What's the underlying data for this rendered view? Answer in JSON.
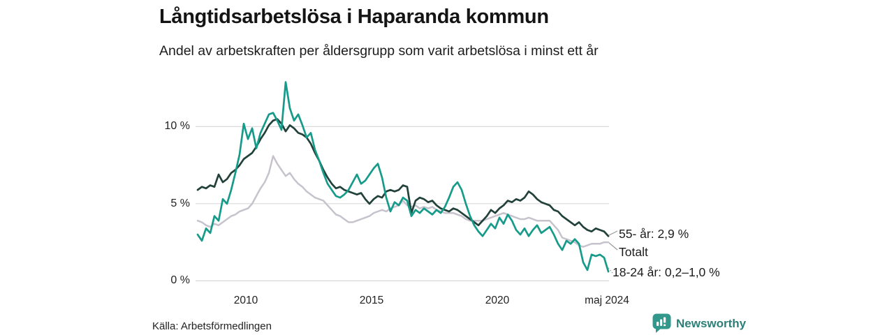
{
  "header": {
    "title": "Långtidsarbetslösa i Haparanda kommun",
    "subtitle": "Andel av arbetskraften per åldersgrupp som varit arbetslösa i minst ett år"
  },
  "chart_data": {
    "type": "line",
    "title": "Långtidsarbetslösa i Haparanda kommun",
    "subtitle": "Andel av arbetskraften per åldersgrupp som varit arbetslösa i minst ett år",
    "unit": "%",
    "grid": "horizontal",
    "legend_position": "line-end-labels-right",
    "xlim": [
      2008.0,
      2024.5
    ],
    "ylim": [
      0,
      13.5
    ],
    "x_start": 2008.083,
    "x_step": 0.16667,
    "x_ticks": [
      {
        "value": 2010,
        "label": "2010"
      },
      {
        "value": 2015,
        "label": "2015"
      },
      {
        "value": 2020,
        "label": "2020"
      },
      {
        "value": 2024.417,
        "label": "maj 2024"
      }
    ],
    "y_ticks": [
      {
        "value": 0,
        "label": "0 %"
      },
      {
        "value": 5,
        "label": "5 %"
      },
      {
        "value": 10,
        "label": "10 %"
      }
    ],
    "series": [
      {
        "name": "Totalt",
        "label": "Totalt",
        "color": "#c7c3cd",
        "values": [
          3.9,
          3.8,
          3.6,
          3.5,
          3.7,
          3.6,
          3.8,
          4.0,
          4.2,
          4.3,
          4.5,
          4.6,
          4.7,
          5.0,
          5.5,
          6.0,
          6.4,
          7.0,
          8.1,
          7.6,
          7.2,
          6.8,
          7.0,
          6.6,
          6.3,
          6.1,
          5.8,
          5.6,
          5.4,
          5.3,
          5.2,
          4.9,
          4.6,
          4.3,
          4.2,
          4.0,
          3.8,
          3.8,
          3.9,
          4.0,
          4.1,
          4.2,
          4.4,
          4.5,
          4.6,
          4.5,
          4.7,
          4.8,
          4.9,
          5.2,
          4.9,
          4.8,
          4.9,
          4.7,
          4.8,
          4.7,
          4.8,
          4.6,
          4.5,
          4.4,
          4.4,
          4.4,
          4.3,
          4.2,
          4.0,
          3.9,
          3.9,
          3.9,
          3.9,
          4.0,
          4.1,
          4.2,
          4.3,
          4.4,
          4.3,
          4.2,
          4.1,
          4.0,
          4.0,
          4.1,
          4.0,
          3.9,
          3.9,
          3.9,
          3.9,
          3.6,
          3.3,
          2.8,
          2.7,
          2.6,
          2.5,
          2.3,
          2.2,
          2.3,
          2.4,
          2.4,
          2.4,
          2.5,
          2.5
        ]
      },
      {
        "name": "55- år",
        "label": "55- år: 2,9 %",
        "last_value": "2,9 %",
        "color": "#22413a",
        "values": [
          5.9,
          6.1,
          6.0,
          6.2,
          6.1,
          6.9,
          6.4,
          6.6,
          7.0,
          7.2,
          7.5,
          7.9,
          8.1,
          8.3,
          8.7,
          9.2,
          9.6,
          10.1,
          10.4,
          10.5,
          10.2,
          9.7,
          10.1,
          9.9,
          9.6,
          9.5,
          9.3,
          8.9,
          8.3,
          7.8,
          7.2,
          6.7,
          6.3,
          6.0,
          6.1,
          5.9,
          5.8,
          5.7,
          5.6,
          5.7,
          5.3,
          5.0,
          5.3,
          5.5,
          5.4,
          5.8,
          5.9,
          5.8,
          5.9,
          6.2,
          6.1,
          4.4,
          5.2,
          5.4,
          5.3,
          5.1,
          5.2,
          4.9,
          4.7,
          4.6,
          4.5,
          4.7,
          4.6,
          4.4,
          4.2,
          4.0,
          3.8,
          3.6,
          3.9,
          4.2,
          4.6,
          4.4,
          4.7,
          4.9,
          5.2,
          5.1,
          5.3,
          5.2,
          5.4,
          5.8,
          5.6,
          5.3,
          5.1,
          5.0,
          4.9,
          4.6,
          4.5,
          4.2,
          4.0,
          3.8,
          3.6,
          3.8,
          3.5,
          3.3,
          3.2,
          3.4,
          3.3,
          3.2,
          2.9
        ]
      },
      {
        "name": "18-24 år",
        "label": "18-24 år: 0,2–1,0 %",
        "last_value": "0,2–1,0 %",
        "color": "#169b8a",
        "values": [
          3.0,
          2.6,
          3.4,
          3.1,
          4.2,
          3.9,
          5.3,
          5.0,
          5.9,
          7.0,
          8.2,
          10.2,
          9.2,
          9.9,
          8.6,
          9.6,
          10.2,
          10.8,
          10.9,
          10.4,
          9.8,
          12.9,
          11.2,
          10.4,
          10.8,
          10.1,
          9.3,
          9.6,
          8.5,
          7.8,
          7.0,
          6.3,
          5.9,
          5.5,
          5.4,
          5.6,
          5.9,
          6.4,
          6.9,
          6.3,
          6.5,
          6.9,
          7.3,
          7.6,
          6.7,
          5.4,
          4.5,
          5.1,
          4.9,
          5.4,
          5.2,
          4.2,
          4.6,
          4.4,
          4.7,
          4.5,
          4.3,
          4.6,
          4.4,
          4.8,
          5.4,
          6.1,
          6.4,
          5.9,
          5.0,
          4.2,
          3.6,
          3.2,
          2.9,
          3.3,
          3.7,
          3.4,
          4.1,
          3.7,
          4.3,
          3.9,
          3.3,
          3.0,
          3.4,
          2.9,
          3.3,
          3.6,
          3.1,
          3.3,
          3.5,
          3.0,
          2.4,
          2.0,
          2.6,
          2.4,
          2.7,
          2.4,
          1.2,
          0.7,
          1.7,
          1.6,
          1.7,
          1.5,
          0.6
        ]
      }
    ]
  },
  "footer": {
    "source": "Källa: Arbetsförmedlingen",
    "brand": "Newsworthy",
    "brand_color": "#2c8077",
    "brand_icon": "newsworthy-speech-bubble-bar-chart-icon"
  }
}
